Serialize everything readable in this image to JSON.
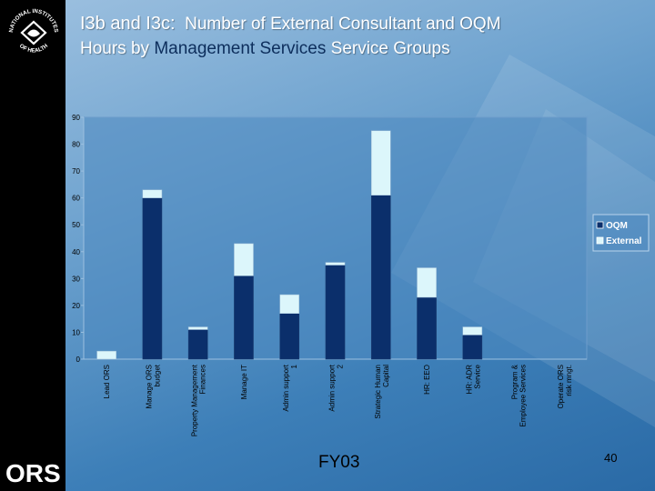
{
  "slide": {
    "title_prefix": "I3b and I3c:",
    "title_part1": "Number of External Consultant and OQM",
    "title_part2": "Hours by",
    "title_highlight": "Management Services",
    "title_part3": "Service Groups",
    "footer_label": "FY03",
    "page_number": "40",
    "logo_top_text": "NATIONAL INSTITUTES",
    "logo_bottom_text": "OF HEALTH",
    "logo_ors": "ORS"
  },
  "colors": {
    "oqm": "#0b2f6b",
    "external": "#dcf6fb",
    "plot_bg": "#4d88c0"
  },
  "chart_data": {
    "type": "bar",
    "stacked": true,
    "title": "",
    "xlabel": "",
    "ylabel": "",
    "ylim": [
      0,
      90
    ],
    "yticks": [
      0,
      10,
      20,
      30,
      40,
      50,
      60,
      70,
      80,
      90
    ],
    "categories": [
      "Lead ORS",
      "Manage ORS budget",
      "Property Management Finances",
      "Manage IT",
      "Admin support 1",
      "Admin support 2",
      "Strategic Human Capital",
      "HR: EEO",
      "HR: ADR Service",
      "Program & Employee Services",
      "Operate ORS risk mngt."
    ],
    "series": [
      {
        "name": "OQM",
        "values": [
          0,
          60,
          11,
          31,
          17,
          35,
          61,
          23,
          9,
          0,
          0
        ]
      },
      {
        "name": "External",
        "values": [
          3,
          3,
          1,
          12,
          7,
          1,
          24,
          11,
          3,
          0,
          0
        ]
      }
    ],
    "legend_position": "right"
  }
}
